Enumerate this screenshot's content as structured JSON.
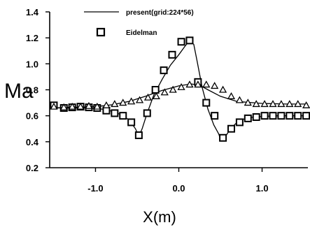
{
  "chart_data": {
    "type": "line",
    "title": "",
    "xlabel": "X(m)",
    "ylabel": "Ma",
    "xlim": [
      -1.55,
      1.55
    ],
    "ylim": [
      0.2,
      1.4
    ],
    "x_ticks": [
      -1.0,
      0.0,
      1.0
    ],
    "x_tick_labels": [
      "-1.0",
      "0.0",
      "1.0"
    ],
    "y_ticks": [
      0.2,
      0.4,
      0.6,
      0.8,
      1.0,
      1.2,
      1.4
    ],
    "y_tick_labels": [
      "0.2",
      "0.4",
      "0.6",
      "0.8",
      "1.0",
      "1.2",
      "1.4"
    ],
    "grid": false,
    "legend_position": "top-center",
    "series": [
      {
        "name": "present(grid:224*56)",
        "style": "line",
        "surface": "lower",
        "x": [
          -1.55,
          -1.3,
          -1.1,
          -0.9,
          -0.8,
          -0.7,
          -0.6,
          -0.52,
          -0.48,
          -0.44,
          -0.38,
          -0.3,
          -0.2,
          -0.1,
          0.0,
          0.08,
          0.13,
          0.18,
          0.22,
          0.28,
          0.35,
          0.42,
          0.48,
          0.5,
          0.52,
          0.56,
          0.62,
          0.7,
          0.8,
          0.9,
          1.0,
          1.2,
          1.55
        ],
        "y": [
          0.66,
          0.66,
          0.66,
          0.65,
          0.635,
          0.61,
          0.57,
          0.5,
          0.44,
          0.5,
          0.62,
          0.76,
          0.88,
          0.99,
          1.07,
          1.14,
          1.18,
          1.15,
          1.02,
          0.82,
          0.65,
          0.53,
          0.46,
          0.42,
          0.41,
          0.44,
          0.5,
          0.55,
          0.58,
          0.59,
          0.595,
          0.6,
          0.6
        ]
      },
      {
        "name": "present(grid:224*56)",
        "style": "line",
        "surface": "upper",
        "x": [
          -1.55,
          -1.3,
          -1.0,
          -0.8,
          -0.6,
          -0.4,
          -0.2,
          0.0,
          0.15,
          0.25,
          0.35,
          0.5,
          0.7,
          1.0,
          1.3,
          1.55
        ],
        "y": [
          0.66,
          0.665,
          0.67,
          0.685,
          0.71,
          0.75,
          0.795,
          0.83,
          0.845,
          0.835,
          0.8,
          0.75,
          0.71,
          0.695,
          0.69,
          0.69
        ]
      },
      {
        "name": "Eidelman",
        "style": "square",
        "x": [
          -1.5,
          -1.38,
          -1.28,
          -1.18,
          -1.08,
          -0.98,
          -0.87,
          -0.77,
          -0.67,
          -0.57,
          -0.48,
          -0.38,
          -0.28,
          -0.18,
          -0.08,
          0.03,
          0.13,
          0.23,
          0.33,
          0.43,
          0.53,
          0.63,
          0.73,
          0.83,
          0.93,
          1.03,
          1.13,
          1.23,
          1.33,
          1.43,
          1.53
        ],
        "y": [
          0.68,
          0.66,
          0.665,
          0.67,
          0.665,
          0.66,
          0.64,
          0.62,
          0.6,
          0.55,
          0.45,
          0.62,
          0.8,
          0.95,
          1.07,
          1.17,
          1.18,
          0.86,
          0.7,
          0.6,
          0.43,
          0.5,
          0.55,
          0.58,
          0.59,
          0.6,
          0.6,
          0.6,
          0.6,
          0.6,
          0.6
        ]
      },
      {
        "name": "",
        "style": "triangle",
        "x": [
          -1.5,
          -1.38,
          -1.28,
          -1.18,
          -1.08,
          -0.98,
          -0.87,
          -0.77,
          -0.67,
          -0.57,
          -0.47,
          -0.37,
          -0.27,
          -0.17,
          -0.07,
          0.03,
          0.13,
          0.23,
          0.33,
          0.43,
          0.53,
          0.63,
          0.73,
          0.83,
          0.93,
          1.03,
          1.13,
          1.23,
          1.33,
          1.43,
          1.53
        ],
        "y": [
          0.67,
          0.665,
          0.67,
          0.67,
          0.675,
          0.67,
          0.68,
          0.69,
          0.7,
          0.71,
          0.72,
          0.74,
          0.75,
          0.78,
          0.8,
          0.82,
          0.84,
          0.84,
          0.84,
          0.83,
          0.8,
          0.75,
          0.72,
          0.7,
          0.69,
          0.69,
          0.69,
          0.69,
          0.69,
          0.69,
          0.68
        ]
      }
    ]
  }
}
